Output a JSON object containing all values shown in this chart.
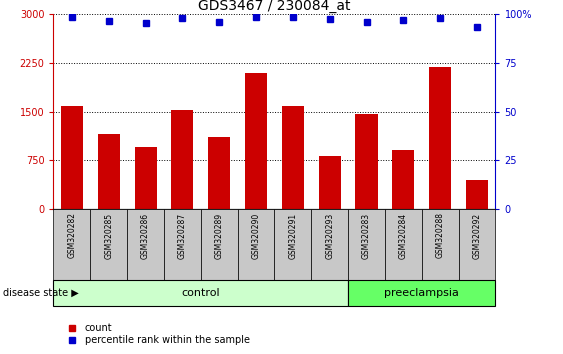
{
  "title": "GDS3467 / 230084_at",
  "samples": [
    "GSM320282",
    "GSM320285",
    "GSM320286",
    "GSM320287",
    "GSM320289",
    "GSM320290",
    "GSM320291",
    "GSM320293",
    "GSM320283",
    "GSM320284",
    "GSM320288",
    "GSM320292"
  ],
  "counts": [
    1580,
    1150,
    950,
    1520,
    1100,
    2100,
    1580,
    820,
    1460,
    900,
    2180,
    450
  ],
  "percentile_ranks": [
    98.3,
    96.7,
    95.7,
    98.0,
    96.0,
    98.7,
    98.3,
    97.3,
    96.0,
    97.0,
    98.0,
    93.3
  ],
  "bar_color": "#cc0000",
  "dot_color": "#0000cc",
  "ylim_left": [
    0,
    3000
  ],
  "ylim_right": [
    0,
    100
  ],
  "yticks_left": [
    0,
    750,
    1500,
    2250,
    3000
  ],
  "yticks_right": [
    0,
    25,
    50,
    75,
    100
  ],
  "control_count": 8,
  "preeclampsia_count": 4,
  "control_label": "control",
  "preeclampsia_label": "preeclampsia",
  "disease_state_label": "disease state",
  "legend_count_label": "count",
  "legend_percentile_label": "percentile rank within the sample",
  "control_bg_color": "#ccffcc",
  "preeclampsia_bg_color": "#66ff66",
  "xtick_bg_color": "#c8c8c8",
  "title_fontsize": 10,
  "tick_fontsize": 7,
  "bar_width": 0.6
}
